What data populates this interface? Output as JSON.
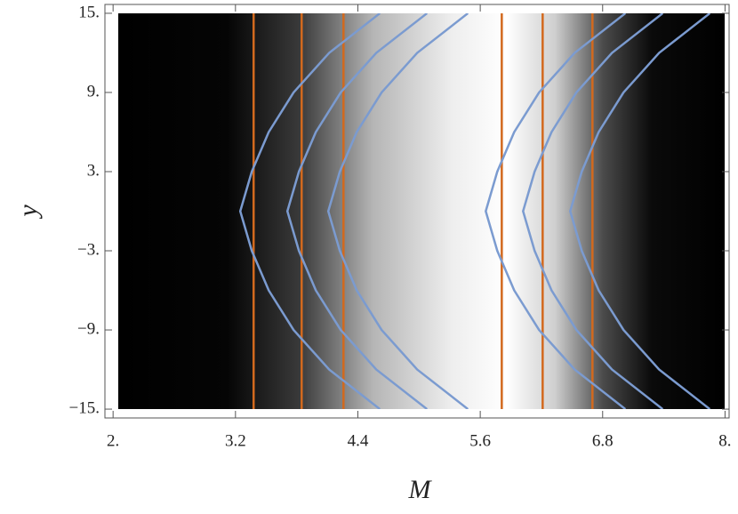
{
  "chart_data": {
    "type": "density",
    "xlabel": "M",
    "ylabel": "y",
    "xlim": [
      1.92,
      8.04
    ],
    "ylim": [
      -15.67,
      15.67
    ],
    "xticks": [
      {
        "value": 2,
        "label": "2."
      },
      {
        "value": 3.2,
        "label": "3.2"
      },
      {
        "value": 4.4,
        "label": "4.4"
      },
      {
        "value": 5.6,
        "label": "5.6"
      },
      {
        "value": 6.8,
        "label": "6.8"
      },
      {
        "value": 8,
        "label": "8."
      }
    ],
    "yticks": [
      {
        "value": -15,
        "label": "−15."
      },
      {
        "value": -9,
        "label": "−9."
      },
      {
        "value": -3,
        "label": "−3."
      },
      {
        "value": 3,
        "label": "3."
      },
      {
        "value": 9,
        "label": "9."
      },
      {
        "value": 15,
        "label": "15."
      }
    ],
    "vlines": {
      "color": "#d2691e",
      "values": [
        3.378,
        3.849,
        4.259,
        5.811,
        6.212,
        6.7
      ]
    },
    "contours": {
      "color": "#7b9bd0",
      "y": [
        -15,
        -12,
        -9,
        -6,
        -3,
        0,
        3,
        6,
        9,
        12,
        15
      ],
      "curves": [
        [
          4.616,
          4.119,
          3.77,
          3.526,
          3.36,
          3.247,
          3.36,
          3.526,
          3.77,
          4.119,
          4.616
        ],
        [
          5.078,
          4.581,
          4.232,
          3.988,
          3.822,
          3.709,
          3.822,
          3.988,
          4.232,
          4.581,
          5.078
        ],
        [
          5.479,
          4.982,
          4.633,
          4.389,
          4.223,
          4.11,
          4.223,
          4.389,
          4.633,
          4.982,
          5.479
        ],
        [
          7.023,
          6.526,
          6.177,
          5.933,
          5.767,
          5.654,
          5.767,
          5.933,
          6.177,
          6.526,
          7.023
        ],
        [
          7.389,
          6.892,
          6.543,
          6.299,
          6.133,
          6.02,
          6.133,
          6.299,
          6.543,
          6.892,
          7.389
        ],
        [
          7.851,
          7.354,
          7.005,
          6.761,
          6.595,
          6.482,
          6.595,
          6.761,
          7.005,
          7.354,
          7.851
        ]
      ]
    }
  }
}
